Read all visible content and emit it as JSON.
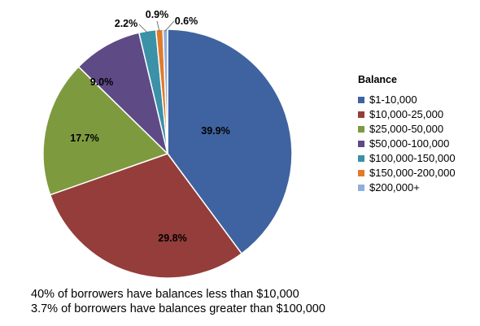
{
  "chart_data": {
    "type": "pie",
    "categories": [
      "$1-10,000",
      "$10,000-25,000",
      "$25,000-50,000",
      "$50,000-100,000",
      "$100,000-150,000",
      "$150,000-200,000",
      "$200,000+"
    ],
    "values": [
      39.9,
      29.8,
      17.7,
      9.0,
      2.2,
      0.9,
      0.6
    ],
    "labels": [
      "39.9%",
      "29.8%",
      "17.7%",
      "9.0%",
      "2.2%",
      "0.9%",
      "0.6%"
    ],
    "colors": [
      "#3F63A0",
      "#943D3A",
      "#7E9A3E",
      "#5E4A85",
      "#3A91A8",
      "#E07B2C",
      "#8FAEDB"
    ],
    "legend_title": "Balance",
    "legend_position": "right"
  },
  "notes": [
    "40% of borrowers have balances less than $10,000",
    "3.7% of borrowers have balances greater than $100,000"
  ]
}
